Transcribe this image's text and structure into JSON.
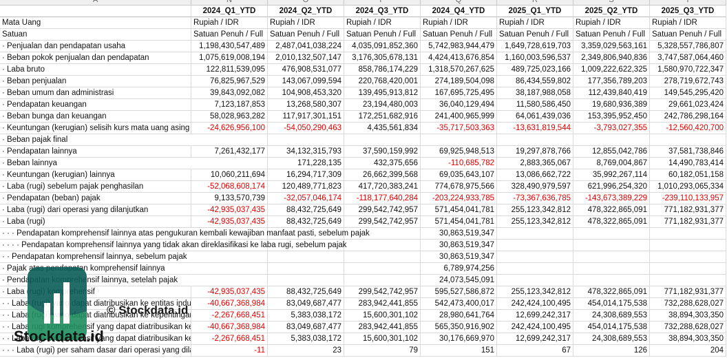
{
  "sheet": {
    "column_letters": [
      "A",
      "N",
      "O",
      "P",
      "Q",
      "R",
      "S",
      "T"
    ],
    "periods": [
      "2024_Q1_YTD",
      "2024_Q2_YTD",
      "2024_Q3_YTD",
      "2024_Q4_YTD",
      "2025_Q1_YTD",
      "2025_Q2_YTD",
      "2025_Q3_YTD"
    ],
    "rows": [
      {
        "label": "Mata Uang",
        "values": [
          "Rupiah / IDR",
          "Rupiah / IDR",
          "Rupiah / IDR",
          "Rupiah / IDR",
          "Rupiah / IDR",
          "Rupiah / IDR",
          "Rupiah / IDR"
        ]
      },
      {
        "label": "Satuan",
        "values": [
          "Satuan Penuh / Full",
          "Satuan Penuh / Full",
          "Satuan Penuh / Full",
          "Satuan Penuh / Full",
          "Satuan Penuh / Full",
          "Satuan Penuh / Full",
          "Satuan Penuh / Full"
        ]
      },
      {
        "label": "· Penjualan dan pendapatan usaha",
        "values": [
          "1,198,430,547,489",
          "2,487,041,038,224",
          "4,035,091,852,360",
          "5,742,983,944,479",
          "1,649,728,619,703",
          "3,359,029,563,161",
          "5,328,557,786,807"
        ]
      },
      {
        "label": "· Beban pokok penjualan dan pendapatan",
        "values": [
          "1,075,619,008,194",
          "2,010,132,507,147",
          "3,176,305,678,131",
          "4,424,413,676,854",
          "1,160,003,596,537",
          "2,349,806,940,836",
          "3,747,587,064,460"
        ]
      },
      {
        "label": "· Laba bruto",
        "values": [
          "122,811,539,095",
          "476,908,531,077",
          "858,786,174,229",
          "1,318,570,267,625",
          "489,725,023,166",
          "1,009,222,622,325",
          "1,580,970,722,347"
        ]
      },
      {
        "label": "· Beban penjualan",
        "values": [
          "76,825,967,529",
          "143,067,099,594",
          "220,768,420,001",
          "274,189,504,098",
          "86,434,559,802",
          "177,356,789,203",
          "278,719,672,743"
        ]
      },
      {
        "label": "· Beban umum dan administrasi",
        "values": [
          "39,843,092,082",
          "104,908,453,320",
          "139,495,913,812",
          "167,695,725,495",
          "38,187,988,058",
          "112,439,840,419",
          "149,545,295,420"
        ]
      },
      {
        "label": "· Pendapatan keuangan",
        "values": [
          "7,123,187,853",
          "13,268,580,307",
          "23,194,480,003",
          "36,040,129,494",
          "11,580,586,450",
          "19,680,936,389",
          "29,661,023,424"
        ]
      },
      {
        "label": "· Beban bunga dan keuangan",
        "values": [
          "58,028,963,282",
          "117,917,301,151",
          "172,251,682,916",
          "241,400,965,999",
          "64,061,439,036",
          "153,395,952,450",
          "242,786,298,164"
        ]
      },
      {
        "label": "· Keuntungan (kerugian) selisih kurs mata uang asing",
        "values": [
          "-24,626,956,100",
          "-54,050,290,463",
          "4,435,561,834",
          "-35,717,503,363",
          "-13,631,819,544",
          "-3,793,027,355",
          "-12,560,420,700"
        ]
      },
      {
        "label": "· Beban pajak final",
        "values": [
          null,
          null,
          null,
          null,
          null,
          null,
          null
        ]
      },
      {
        "label": "· Pendapatan lainnya",
        "values": [
          "7,261,432,177",
          "34,132,315,793",
          "37,590,159,992",
          "69,925,948,513",
          "19,297,878,766",
          "12,855,042,786",
          "37,581,738,846"
        ]
      },
      {
        "label": "· Beban lainnya",
        "values": [
          null,
          "171,228,135",
          "432,375,656",
          "-110,685,782",
          "2,883,365,067",
          "8,769,004,867",
          "14,490,783,414"
        ]
      },
      {
        "label": "· Keuntungan (kerugian) lainnya",
        "values": [
          "10,060,211,694",
          "16,294,717,309",
          "26,662,399,568",
          "69,035,643,107",
          "13,086,662,722",
          "35,992,267,114",
          "60,182,051,158"
        ]
      },
      {
        "label": "· Laba (rugi) sebelum pajak penghasilan",
        "values": [
          "-52,068,608,174",
          "120,489,771,823",
          "417,720,383,241",
          "774,678,975,566",
          "328,490,979,597",
          "621,996,254,320",
          "1,010,293,065,334"
        ]
      },
      {
        "label": "· Pendapatan (beban) pajak",
        "values": [
          "9,133,570,739",
          "-32,057,046,174",
          "-118,177,640,284",
          "-203,224,933,785",
          "-73,367,636,785",
          "-143,673,389,229",
          "-239,110,133,957"
        ]
      },
      {
        "label": "· Laba (rugi) dari operasi yang dilanjutkan",
        "values": [
          "-42,935,037,435",
          "88,432,725,649",
          "299,542,742,957",
          "571,454,041,781",
          "255,123,342,812",
          "478,322,865,091",
          "771,182,931,377"
        ]
      },
      {
        "label": "· Laba (rugi)",
        "values": [
          "-42,935,037,435",
          "88,432,725,649",
          "299,542,742,957",
          "571,454,041,781",
          "255,123,342,812",
          "478,322,865,091",
          "771,182,931,377"
        ]
      },
      {
        "label": "· · · Pendapatan komprehensif lainnya atas pengukuran kembali kewajiban manfaat pasti, sebelum pajak",
        "values": [
          null,
          null,
          null,
          "30,863,519,347",
          null,
          null,
          null
        ]
      },
      {
        "label": "· · · · Pendapatan komprehensif lainnya yang tidak akan direklasifikasi ke laba rugi, sebelum pajak",
        "values": [
          null,
          null,
          null,
          "30,863,519,347",
          null,
          null,
          null
        ]
      },
      {
        "label": "· · Pendapatan komprehensif lainnya, sebelum pajak",
        "values": [
          null,
          null,
          null,
          "30,863,519,347",
          null,
          null,
          null
        ]
      },
      {
        "label": "· Pajak atas pendapatan komprehensif lainnya",
        "values": [
          null,
          null,
          null,
          "6,789,974,256",
          null,
          null,
          null
        ]
      },
      {
        "label": "· Pendapatan komprehensif lainnya, setelah pajak",
        "values": [
          null,
          null,
          null,
          "24,073,545,091",
          null,
          null,
          null
        ]
      },
      {
        "label": "· Laba (rugi) komprehensif",
        "values": [
          "-42,935,037,435",
          "88,432,725,649",
          "299,542,742,957",
          "595,527,586,872",
          "255,123,342,812",
          "478,322,865,091",
          "771,182,931,377"
        ]
      },
      {
        "label": "· · Laba (rugi) yang dapat diatribusikan ke entitas induk",
        "values": [
          "-40,667,368,984",
          "83,049,687,477",
          "283,942,441,855",
          "542,473,400,017",
          "242,424,100,495",
          "454,014,175,538",
          "732,288,628,027"
        ]
      },
      {
        "label": "· · Laba (rugi) yang dapat diatribusikan ke kepentingan non-pengendali",
        "values": [
          "-2,267,668,451",
          "5,383,038,172",
          "15,600,301,102",
          "28,980,641,764",
          "12,699,242,317",
          "24,308,689,553",
          "38,894,303,350"
        ]
      },
      {
        "label": "· · Laba rugi komprehensif yang dapat diatribusikan ke entitas induk",
        "values": [
          "-40,667,368,984",
          "83,049,687,477",
          "283,942,441,855",
          "565,350,916,902",
          "242,424,100,495",
          "454,014,175,538",
          "732,288,628,027"
        ]
      },
      {
        "label": "· · Laba rugi komprehensif yang dapat diatribusikan ke kepentingan non-pengendali",
        "values": [
          "-2,267,668,451",
          "5,383,038,172",
          "15,600,301,102",
          "30,176,669,970",
          "12,699,242,317",
          "24,308,689,553",
          "38,894,303,350"
        ]
      },
      {
        "label": "· · · Laba (rugi) per saham dasar dari operasi yang dilanjutkan",
        "values": [
          "-11",
          "23",
          "79",
          "151",
          "67",
          "126",
          "204"
        ]
      }
    ]
  },
  "watermark": {
    "caption": "© Stockdata.id",
    "brand": "Stockdata.id"
  }
}
